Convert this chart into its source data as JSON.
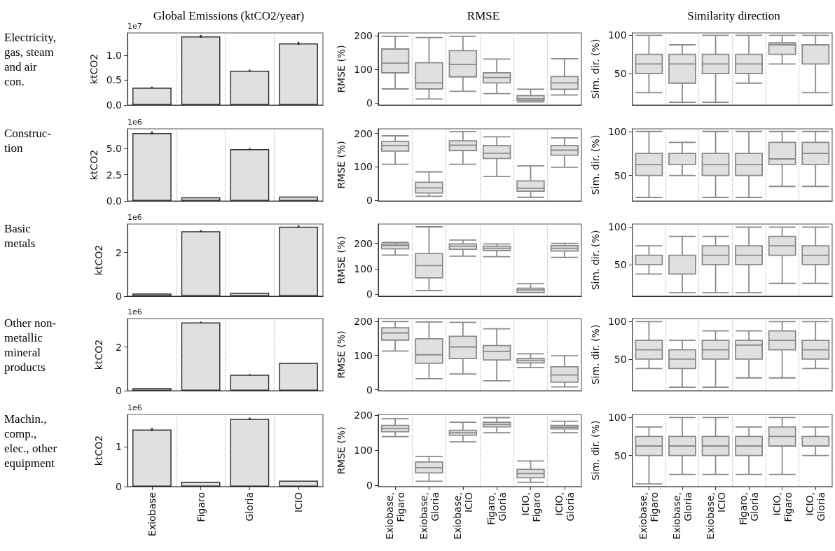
{
  "chart_data": [
    {
      "type": "bar",
      "title": "Global Emissions (ktCO2/year)",
      "ylabel": "ktCO2",
      "annotations": [
        "Electricity,\ngas, steam\nand air\ncon.",
        "1e7"
      ],
      "categories": [
        null,
        null,
        null,
        null
      ],
      "values": [
        0.35,
        1.38,
        0.69,
        1.24
      ],
      "errors": [
        0.02,
        0.03,
        0.02,
        0.03
      ],
      "color": "#e0e0e0",
      "ylim": [
        0,
        1.45
      ],
      "yticks": [
        {
          "value": 0,
          "label": "0.0"
        },
        0.5,
        {
          "value": 1,
          "label": "1.0"
        }
      ],
      "grid": "x",
      "tick_labels": "y"
    },
    {
      "type": "box",
      "title": "RMSE",
      "ylabel": "RMSE (%)",
      "categories": [
        null,
        null,
        null,
        null,
        null,
        null
      ],
      "color": "#e0e0e0",
      "ylim": [
        -6,
        209
      ],
      "yticks": [
        0,
        100,
        200
      ],
      "grid": "x",
      "tick_labels": "y",
      "boxes": [
        {
          "low": 42,
          "q1": 90,
          "median": 119,
          "q3": 161,
          "high": 199
        },
        {
          "low": 12,
          "q1": 42,
          "median": 60,
          "q3": 120,
          "high": 195
        },
        {
          "low": 35,
          "q1": 78,
          "median": 115,
          "q3": 156,
          "high": 199
        },
        {
          "low": 28,
          "q1": 60,
          "median": 76,
          "q3": 90,
          "high": 131
        },
        {
          "low": 3,
          "q1": 8,
          "median": 13,
          "q3": 22,
          "high": 41
        },
        {
          "low": 24,
          "q1": 41,
          "median": 60,
          "q3": 79,
          "high": 132
        }
      ]
    },
    {
      "type": "box",
      "title": "Similarity direction",
      "ylabel": "Sim. dir. (%)",
      "categories": [
        null,
        null,
        null,
        null,
        null,
        null
      ],
      "color": "#e0e0e0",
      "ylim": [
        9,
        103
      ],
      "yticks": [
        50,
        100
      ],
      "grid": "x",
      "tick_labels": "y",
      "boxes": [
        {
          "low": 25,
          "q1": 50,
          "median": 62.5,
          "q3": 75,
          "high": 100
        },
        {
          "low": 12.5,
          "q1": 37.5,
          "median": 62.5,
          "q3": 75,
          "high": 87.5
        },
        {
          "low": 12.5,
          "q1": 50,
          "median": 62.5,
          "q3": 75,
          "high": 100
        },
        {
          "low": 37.5,
          "q1": 50,
          "median": 62.5,
          "q3": 75,
          "high": 100
        },
        {
          "low": 62.5,
          "q1": 75,
          "median": 87.5,
          "q3": 90,
          "high": 100
        },
        {
          "low": 25,
          "q1": 62.5,
          "median": 62.5,
          "q3": 87.5,
          "high": 100
        }
      ]
    },
    {
      "type": "bar",
      "ylabel": "ktCO2",
      "annotations": [
        "Construc-\ntion",
        "1e6"
      ],
      "categories": [
        null,
        null,
        null,
        null
      ],
      "values": [
        6.5,
        0.35,
        4.95,
        0.42
      ],
      "errors": [
        0.15,
        null,
        0.1,
        null
      ],
      "color": "#e0e0e0",
      "ylim": [
        0,
        6.9
      ],
      "yticks": [
        {
          "value": 0,
          "label": "0.0"
        },
        2.5,
        {
          "value": 5,
          "label": "5.0"
        }
      ],
      "grid": "x",
      "tick_labels": "y"
    },
    {
      "type": "box",
      "ylabel": "RMSE (%)",
      "categories": [
        null,
        null,
        null,
        null,
        null,
        null
      ],
      "color": "#e0e0e0",
      "ylim": [
        -2,
        214
      ],
      "yticks": [
        0,
        100,
        200
      ],
      "grid": "x",
      "tick_labels": "y",
      "boxes": [
        {
          "low": 108,
          "q1": 147,
          "median": 164,
          "q3": 176,
          "high": 193
        },
        {
          "low": 12,
          "q1": 22,
          "median": 37,
          "q3": 54,
          "high": 85
        },
        {
          "low": 108,
          "q1": 149,
          "median": 165,
          "q3": 178,
          "high": 206
        },
        {
          "low": 71,
          "q1": 125,
          "median": 141,
          "q3": 164,
          "high": 190
        },
        {
          "low": 9,
          "q1": 27,
          "median": 36,
          "q3": 58,
          "high": 103
        },
        {
          "low": 99,
          "q1": 135,
          "median": 150,
          "q3": 164,
          "high": 187
        }
      ]
    },
    {
      "type": "box",
      "ylabel": "Sim. dir. (%)",
      "categories": [
        null,
        null,
        null,
        null,
        null,
        null
      ],
      "color": "#e0e0e0",
      "ylim": [
        21,
        103
      ],
      "yticks": [
        50,
        100
      ],
      "grid": "x",
      "tick_labels": "y",
      "boxes": [
        {
          "low": 25,
          "q1": 50,
          "median": 62.5,
          "q3": 75,
          "high": 100
        },
        {
          "low": 50,
          "q1": 62.5,
          "median": 62.5,
          "q3": 75,
          "high": 87.5
        },
        {
          "low": 25,
          "q1": 50,
          "median": 62.5,
          "q3": 75,
          "high": 100
        },
        {
          "low": 25,
          "q1": 50,
          "median": 62.5,
          "q3": 75,
          "high": 100
        },
        {
          "low": 37.5,
          "q1": 62.5,
          "median": 68.75,
          "q3": 87.5,
          "high": 100
        },
        {
          "low": 37.5,
          "q1": 62.5,
          "median": 75,
          "q3": 87.5,
          "high": 100
        }
      ]
    },
    {
      "type": "bar",
      "ylabel": "ktCO2",
      "annotations": [
        "Basic\nmetals",
        "1e6"
      ],
      "categories": [
        null,
        null,
        null,
        null
      ],
      "values": [
        0.12,
        2.97,
        0.15,
        3.18
      ],
      "errors": [
        null,
        0.05,
        null,
        0.06
      ],
      "color": "#e0e0e0",
      "ylim": [
        0,
        3.3
      ],
      "yticks": [
        0,
        2
      ],
      "grid": "x",
      "tick_labels": "y"
    },
    {
      "type": "box",
      "ylabel": "RMSE (%)",
      "categories": [
        null,
        null,
        null,
        null,
        null,
        null
      ],
      "color": "#e0e0e0",
      "ylim": [
        -7,
        276
      ],
      "yticks": [
        0,
        100,
        200
      ],
      "grid": "x",
      "tick_labels": "y",
      "boxes": [
        {
          "low": 154,
          "q1": 179,
          "median": 192,
          "q3": 198,
          "high": 204
        },
        {
          "low": 15,
          "q1": 65,
          "median": 113,
          "q3": 160,
          "high": 265
        },
        {
          "low": 150,
          "q1": 177,
          "median": 189,
          "q3": 198,
          "high": 213
        },
        {
          "low": 148,
          "q1": 172,
          "median": 181,
          "q3": 189,
          "high": 198
        },
        {
          "low": 7,
          "q1": 7,
          "median": 17,
          "q3": 24,
          "high": 42
        },
        {
          "low": 145,
          "q1": 170,
          "median": 181,
          "q3": 191,
          "high": 200
        }
      ]
    },
    {
      "type": "box",
      "ylabel": "Sim. dir. (%)",
      "categories": [
        null,
        null,
        null,
        null,
        null,
        null
      ],
      "color": "#e0e0e0",
      "ylim": [
        8,
        104
      ],
      "yticks": [
        50,
        100
      ],
      "grid": "x",
      "tick_labels": "y",
      "boxes": [
        {
          "low": 37.5,
          "q1": 50,
          "median": 50,
          "q3": 62.5,
          "high": 75
        },
        {
          "low": 12.5,
          "q1": 37.5,
          "median": 37.5,
          "q3": 62.5,
          "high": 87.5
        },
        {
          "low": 12.5,
          "q1": 50,
          "median": 62.5,
          "q3": 75,
          "high": 87.5
        },
        {
          "low": 12.5,
          "q1": 50,
          "median": 62.5,
          "q3": 75,
          "high": 100
        },
        {
          "low": 25,
          "q1": 62.5,
          "median": 75,
          "q3": 87.5,
          "high": 100
        },
        {
          "low": 25,
          "q1": 50,
          "median": 62.5,
          "q3": 75,
          "high": 100
        }
      ]
    },
    {
      "type": "bar",
      "ylabel": "ktCO2",
      "annotations": [
        "Other non-\nmetallic\nmineral\nproducts",
        "1e6"
      ],
      "categories": [
        null,
        null,
        null,
        null
      ],
      "values": [
        0.12,
        3.12,
        0.73,
        1.27
      ],
      "errors": [
        null,
        0.04,
        0.03,
        null
      ],
      "color": "#e0e0e0",
      "ylim": [
        0,
        3.3
      ],
      "yticks": [
        0,
        2
      ],
      "grid": "x",
      "tick_labels": "y"
    },
    {
      "type": "box",
      "ylabel": "RMSE (%)",
      "categories": [
        null,
        null,
        null,
        null,
        null,
        null
      ],
      "color": "#e0e0e0",
      "ylim": [
        -3,
        208
      ],
      "yticks": [
        0,
        100,
        200
      ],
      "grid": "x",
      "tick_labels": "y",
      "boxes": [
        {
          "low": 113,
          "q1": 145,
          "median": 166,
          "q3": 181,
          "high": 199
        },
        {
          "low": 32,
          "q1": 77,
          "median": 102,
          "q3": 149,
          "high": 198
        },
        {
          "low": 46,
          "q1": 91,
          "median": 125,
          "q3": 156,
          "high": 197
        },
        {
          "low": 26,
          "q1": 87,
          "median": 112,
          "q3": 129,
          "high": 178
        },
        {
          "low": 65,
          "q1": 78,
          "median": 86,
          "q3": 91,
          "high": 105
        },
        {
          "low": 8,
          "q1": 22,
          "median": 43,
          "q3": 67,
          "high": 99
        }
      ]
    },
    {
      "type": "box",
      "ylabel": "Sim. dir. (%)",
      "categories": [
        null,
        null,
        null,
        null,
        null,
        null
      ],
      "color": "#e0e0e0",
      "ylim": [
        8,
        104
      ],
      "yticks": [
        50,
        100
      ],
      "grid": "x",
      "tick_labels": "y",
      "boxes": [
        {
          "low": 37.5,
          "q1": 50,
          "median": 62.5,
          "q3": 75,
          "high": 100
        },
        {
          "low": 12.5,
          "q1": 37.5,
          "median": 50,
          "q3": 62.5,
          "high": 75
        },
        {
          "low": 12.5,
          "q1": 50,
          "median": 62.5,
          "q3": 75,
          "high": 87.5
        },
        {
          "low": 25,
          "q1": 50,
          "median": 68.75,
          "q3": 75,
          "high": 87.5
        },
        {
          "low": 25,
          "q1": 62.5,
          "median": 75,
          "q3": 87.5,
          "high": 100
        },
        {
          "low": 37.5,
          "q1": 50,
          "median": 62.5,
          "q3": 75,
          "high": 100
        }
      ]
    },
    {
      "type": "bar",
      "ylabel": "ktCO2",
      "annotations": [
        "Machin.,\ncomp.,\nelec., other\nequipment",
        "1e6"
      ],
      "categories": [
        "Exiobase",
        "Figaro",
        "Gloria",
        "ICIO"
      ],
      "values": [
        1.44,
        0.12,
        1.71,
        0.15
      ],
      "errors": [
        0.04,
        null,
        0.03,
        null
      ],
      "color": "#e0e0e0",
      "ylim": [
        0,
        1.82
      ],
      "yticks": [
        0,
        1
      ],
      "grid": "x"
    },
    {
      "type": "box",
      "ylabel": "RMSE (%)",
      "categories": [
        "Exiobase,\nFigaro",
        "Exiobase,\nGloria",
        "Exiobase,\nICIO",
        "Figaro,\nGloria",
        "ICIO,\nFigaro",
        "ICIO,\nGloria"
      ],
      "color": "#e0e0e0",
      "ylim": [
        -3,
        202
      ],
      "yticks": [
        0,
        100,
        200
      ],
      "grid": "x",
      "boxes": [
        {
          "low": 139,
          "q1": 153,
          "median": 162,
          "q3": 171,
          "high": 190
        },
        {
          "low": 12,
          "q1": 36,
          "median": 51,
          "q3": 67,
          "high": 83
        },
        {
          "low": 124,
          "q1": 143,
          "median": 150,
          "q3": 157,
          "high": 180
        },
        {
          "low": 150,
          "q1": 167,
          "median": 174,
          "q3": 180,
          "high": 193
        },
        {
          "low": 9,
          "q1": 22,
          "median": 34,
          "q3": 46,
          "high": 70
        },
        {
          "low": 150,
          "q1": 161,
          "median": 166,
          "q3": 171,
          "high": 183
        }
      ]
    },
    {
      "type": "box",
      "ylabel": "Sim. dir. (%)",
      "categories": [
        "Exiobase,\nFigaro",
        "Exiobase,\nGloria",
        "Exiobase,\nICIO",
        "Figaro,\nGloria",
        "ICIO,\nFigaro",
        "ICIO,\nGloria"
      ],
      "color": "#e0e0e0",
      "ylim": [
        9,
        104
      ],
      "yticks": [
        50,
        100
      ],
      "grid": "x",
      "boxes": [
        {
          "low": 12.5,
          "q1": 50,
          "median": 62.5,
          "q3": 75,
          "high": 87.5
        },
        {
          "low": 25,
          "q1": 50,
          "median": 62.5,
          "q3": 75,
          "high": 100
        },
        {
          "low": 25,
          "q1": 50,
          "median": 62.5,
          "q3": 75,
          "high": 100
        },
        {
          "low": 25,
          "q1": 50,
          "median": 62.5,
          "q3": 75,
          "high": 87.5
        },
        {
          "low": 25,
          "q1": 62.5,
          "median": 75,
          "q3": 87.5,
          "high": 100
        },
        {
          "low": 50,
          "q1": 62.5,
          "median": 62.5,
          "q3": 75,
          "high": 87.5
        }
      ]
    }
  ]
}
